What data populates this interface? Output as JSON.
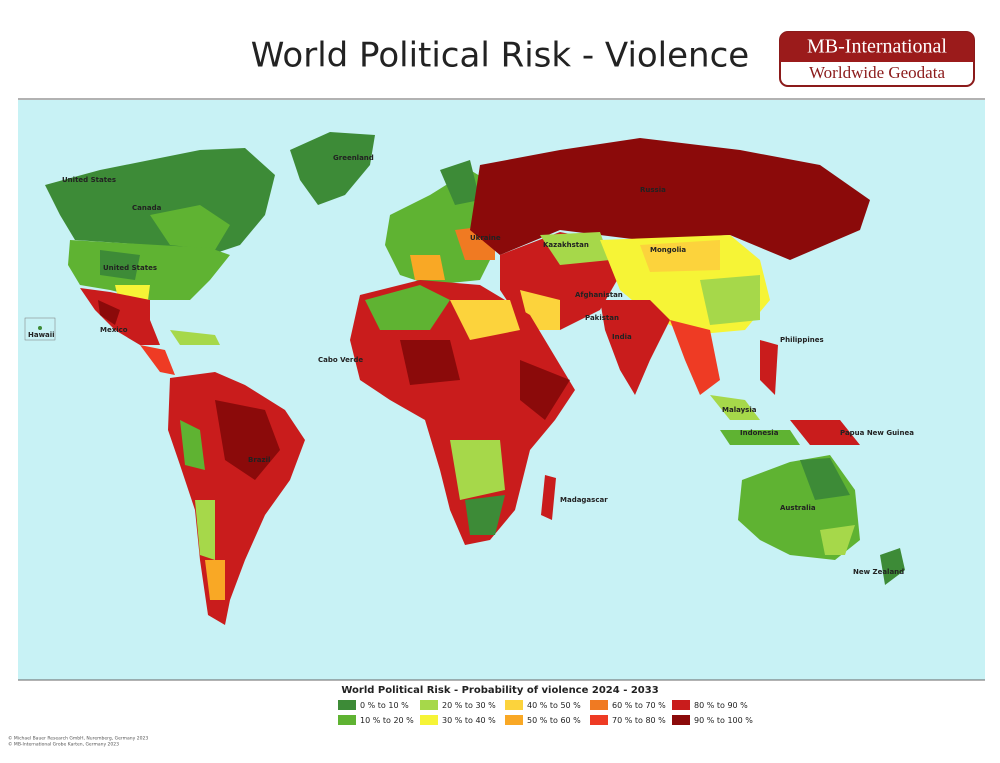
{
  "header": {
    "title": "World Political Risk - Violence"
  },
  "logo": {
    "line1": "MB-International",
    "line2": "Worldwide Geodata"
  },
  "map": {
    "labels": [
      "Greenland",
      "United States",
      "Canada",
      "United States",
      "Mexico",
      "Hawaii",
      "Brazil",
      "Russia",
      "Kazakhstan",
      "Mongolia",
      "India",
      "Malaysia",
      "Indonesia",
      "Philippines",
      "Papua New Guinea",
      "Australia",
      "New Zealand",
      "Cabo Verde",
      "Madagascar",
      "Ukraine",
      "Afghanistan",
      "Pakistan"
    ]
  },
  "legend": {
    "title": "World Political Risk - Probability of violence 2024 - 2033",
    "items": [
      {
        "label": "0 % to 10 %",
        "color": "#3d8b37"
      },
      {
        "label": "10 % to 20 %",
        "color": "#5fb332"
      },
      {
        "label": "20 % to 30 %",
        "color": "#a6d84a"
      },
      {
        "label": "30 % to 40 %",
        "color": "#f6f436"
      },
      {
        "label": "40 % to 50 %",
        "color": "#fcd33c"
      },
      {
        "label": "50 % to 60 %",
        "color": "#f9a825"
      },
      {
        "label": "60 % to 70 %",
        "color": "#f07a22"
      },
      {
        "label": "70 % to 80 %",
        "color": "#ee3b24"
      },
      {
        "label": "80 % to 90 %",
        "color": "#c91c1c"
      },
      {
        "label": "90 % to 100 %",
        "color": "#8b0a0a"
      }
    ]
  },
  "footer": {
    "line1": "© Michael Bauer Research GmbH, Nuremberg, Germany 2023",
    "line2": "© MB-International Grobe Karten, Germany 2023"
  }
}
